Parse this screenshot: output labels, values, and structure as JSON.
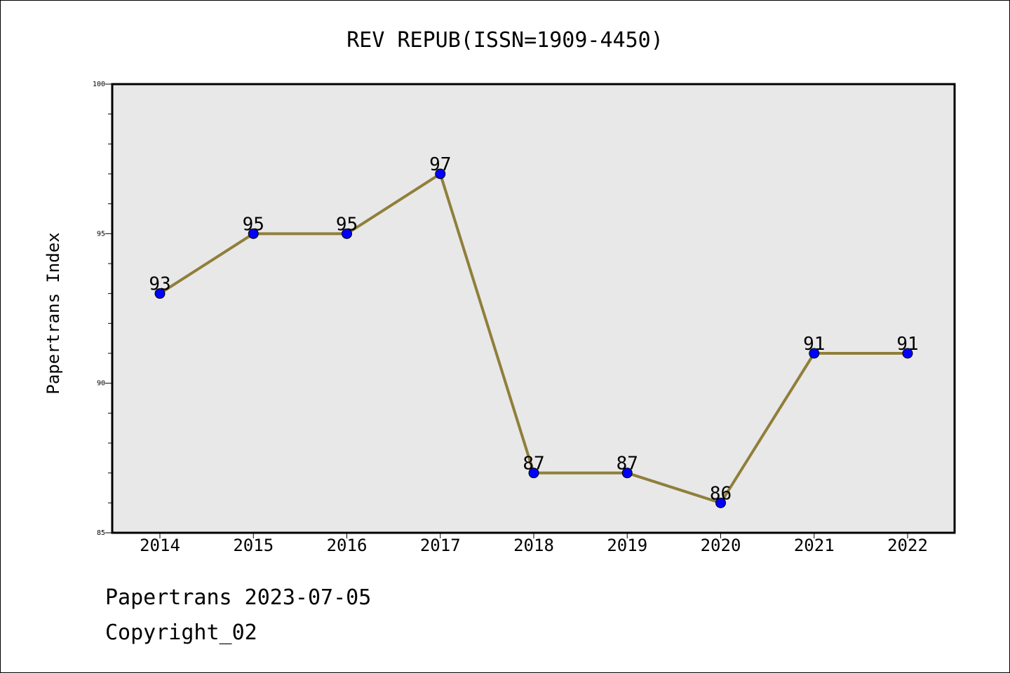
{
  "colors": {
    "line": "#8f7f3a",
    "marker": "#0000ff",
    "plot_background": "#e8e8e8",
    "axis": "#000000"
  },
  "chart_data": {
    "type": "line",
    "title": "REV REPUB(ISSN=1909-4450)",
    "xlabel": "",
    "ylabel": "Papertrans Index",
    "categories": [
      "2014",
      "2015",
      "2016",
      "2017",
      "2018",
      "2019",
      "2020",
      "2021",
      "2022"
    ],
    "values": [
      93,
      95,
      95,
      97,
      87,
      87,
      86,
      91,
      91
    ],
    "data_labels": [
      "93",
      "95",
      "95",
      "97",
      "87",
      "87",
      "86",
      "91",
      "91"
    ],
    "ylim": [
      85,
      100
    ],
    "yticks": [
      85,
      90,
      95,
      100
    ],
    "ytick_labels": [
      "85",
      "90",
      "95",
      "100"
    ],
    "grid": false,
    "legend": "none"
  },
  "footer": {
    "line1": "Papertrans 2023-07-05",
    "line2": "Copyright_02"
  }
}
